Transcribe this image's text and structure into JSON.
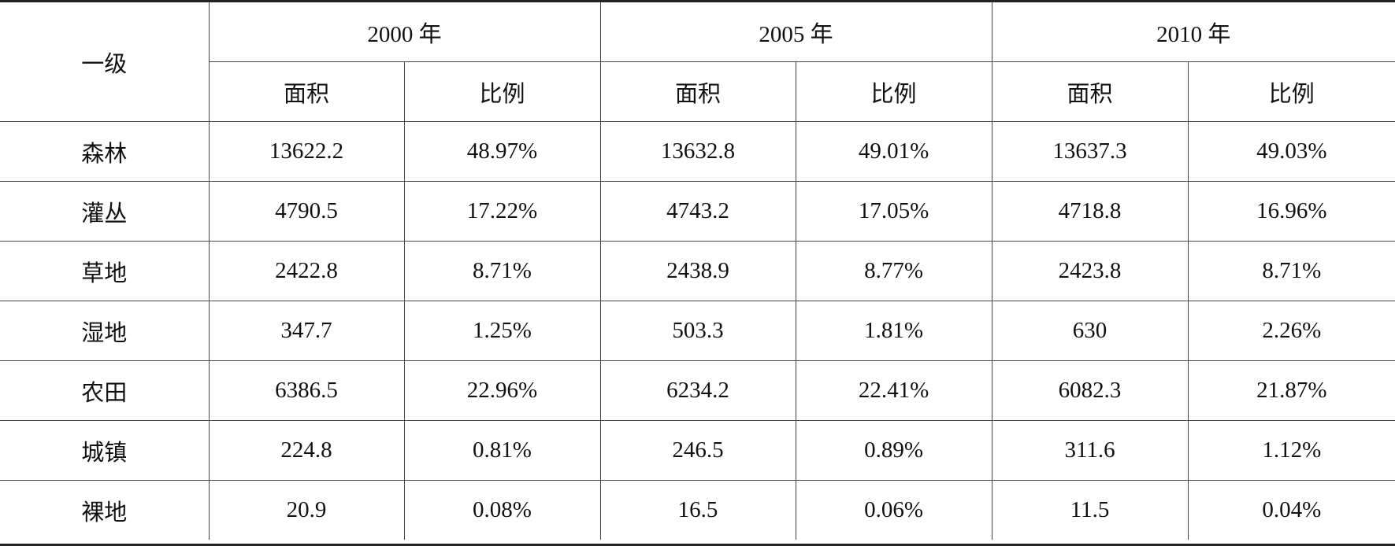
{
  "table": {
    "corner": "一级",
    "groups": [
      "2000 年",
      "2005 年",
      "2010 年"
    ],
    "subheaders": [
      "面积",
      "比例",
      "面积",
      "比例",
      "面积",
      "比例"
    ],
    "rows": [
      [
        "森林",
        "13622.2",
        "48.97%",
        "13632.8",
        "49.01%",
        "13637.3",
        "49.03%"
      ],
      [
        "灌丛",
        "4790.5",
        "17.22%",
        "4743.2",
        "17.05%",
        "4718.8",
        "16.96%"
      ],
      [
        "草地",
        "2422.8",
        "8.71%",
        "2438.9",
        "8.77%",
        "2423.8",
        "8.71%"
      ],
      [
        "湿地",
        "347.7",
        "1.25%",
        "503.3",
        "1.81%",
        "630",
        "2.26%"
      ],
      [
        "农田",
        "6386.5",
        "22.96%",
        "6234.2",
        "22.41%",
        "6082.3",
        "21.87%"
      ],
      [
        "城镇",
        "224.8",
        "0.81%",
        "246.5",
        "0.89%",
        "311.6",
        "1.12%"
      ],
      [
        "裸地",
        "20.9",
        "0.08%",
        "16.5",
        "0.06%",
        "11.5",
        "0.04%"
      ]
    ]
  }
}
